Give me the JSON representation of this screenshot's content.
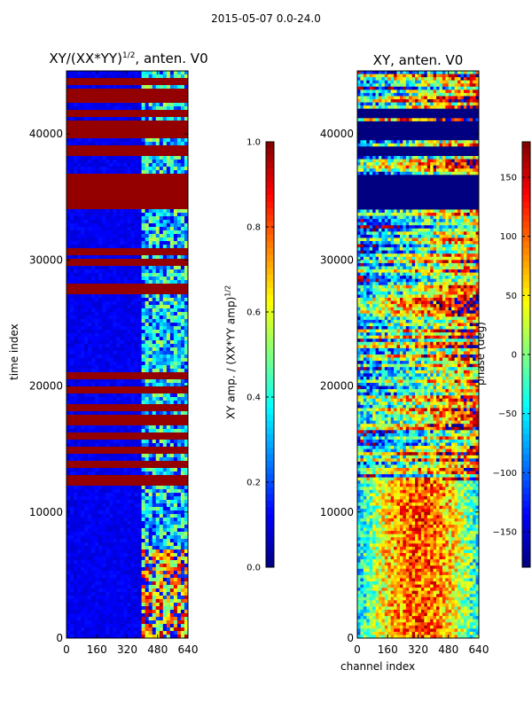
{
  "figure": {
    "suptitle": "2015-05-07 0.0-24.0"
  },
  "chart_data": [
    {
      "type": "heatmap",
      "title": "XY/(XX*YY)^{1/2}, anten. V0",
      "title_main": "XY/(XX*YY)",
      "title_sup": "1/2",
      "title_tail": ", anten. V0",
      "xlabel": "",
      "ylabel": "time index",
      "xlim": [
        0,
        640
      ],
      "ylim": [
        0,
        45000
      ],
      "xticks": [
        0,
        160,
        320,
        480,
        640
      ],
      "yticks": [
        0,
        10000,
        20000,
        30000,
        40000
      ],
      "colormap": "jet",
      "colorbar": {
        "label": "XY amp. / (XX*YY amp)^{1/2}",
        "label_main": "XY amp. / (XX*YY amp)",
        "label_sup": "1/2",
        "range": [
          0.0,
          1.0
        ],
        "ticks": [
          "0.0",
          "0.2",
          "0.4",
          "0.6",
          "0.8",
          "1.0"
        ]
      },
      "saturated_time_bands": [
        [
          12200,
          13000
        ],
        [
          13400,
          14200
        ],
        [
          14600,
          15300
        ],
        [
          15700,
          16300
        ],
        [
          17000,
          17700
        ],
        [
          18000,
          18600
        ],
        [
          19300,
          20100
        ],
        [
          20600,
          21000
        ],
        [
          27200,
          28100
        ],
        [
          29500,
          30000
        ],
        [
          30500,
          31000
        ],
        [
          34000,
          36800
        ],
        [
          38300,
          39000
        ],
        [
          39600,
          41000
        ],
        [
          41300,
          42000
        ],
        [
          42500,
          43700
        ],
        [
          44000,
          44300
        ]
      ],
      "bright_channel_region": [
        400,
        640
      ]
    },
    {
      "type": "heatmap",
      "title": "XY, anten. V0",
      "xlabel": "channel index",
      "ylabel": "",
      "xlim": [
        0,
        640
      ],
      "ylim": [
        0,
        45000
      ],
      "xticks": [
        0,
        160,
        320,
        480,
        640
      ],
      "yticks": [
        0,
        10000,
        20000,
        30000,
        40000
      ],
      "colormap": "jet",
      "colorbar": {
        "label": "phase (deg)",
        "range": [
          -180,
          180
        ],
        "ticks": [
          "−150",
          "−100",
          "−50",
          "0",
          "50",
          "100",
          "150"
        ],
        "tick_values": [
          -150,
          -100,
          -50,
          0,
          50,
          100,
          150
        ]
      },
      "blank_time_bands": [
        [
          34000,
          36800
        ],
        [
          38300,
          39000
        ],
        [
          39600,
          41000
        ],
        [
          41300,
          42000
        ]
      ]
    }
  ]
}
